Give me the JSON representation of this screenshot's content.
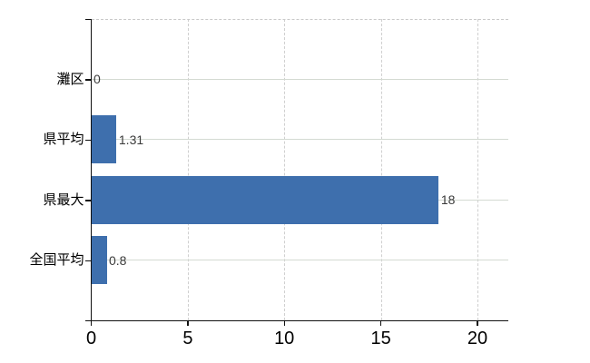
{
  "chart_data": {
    "type": "bar",
    "orientation": "horizontal",
    "title": "",
    "categories": [
      "灘区",
      "県平均",
      "県最大",
      "全国平均"
    ],
    "values": [
      0,
      1.31,
      18,
      0.8
    ],
    "value_labels": [
      "0",
      "1.31",
      "18",
      "0.8"
    ],
    "x_axis": {
      "min": 0,
      "max": 21.6,
      "ticks": [
        0,
        5,
        10,
        15,
        20
      ],
      "tick_labels": [
        "0",
        "5",
        "10",
        "15",
        "20"
      ]
    },
    "legend": "none",
    "grid": {
      "vertical_style": "dashed",
      "horizontal_style": "solid",
      "top_border_style": "dashed"
    },
    "colors": {
      "bar": "#3e6fad",
      "axis": "#111111",
      "grid_vertical": "#cfcfcf",
      "grid_horizontal": "#d4dad2",
      "top_border": "#c9c9c9",
      "value_label": "#3a3a3a",
      "tick_label": "#000000",
      "category_label": "#000000",
      "background": "#ffffff"
    }
  }
}
